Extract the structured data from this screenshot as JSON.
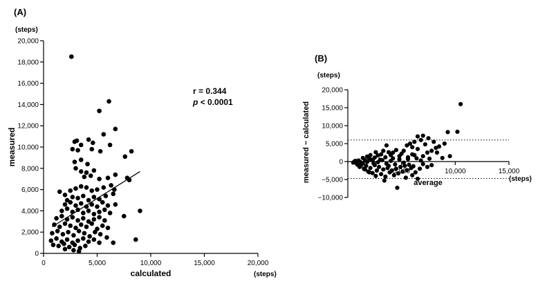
{
  "chart_data": [
    {
      "panel_label": "(A)",
      "type": "scatter",
      "x_unit": "(steps)",
      "y_unit": "(steps)",
      "xlabel": "calculated",
      "ylabel": "measured",
      "xlim": [
        0,
        20000
      ],
      "ylim": [
        0,
        20000
      ],
      "x_ticks": [
        0,
        5000,
        10000,
        15000,
        20000
      ],
      "x_tick_labels": [
        "0",
        "5,000",
        "10,000",
        "15,000",
        "20,000"
      ],
      "y_ticks": [
        0,
        2000,
        4000,
        6000,
        8000,
        10000,
        12000,
        14000,
        16000,
        18000,
        20000
      ],
      "y_tick_labels": [
        "0",
        "2,000",
        "4,000",
        "6,000",
        "8,000",
        "10,000",
        "12,000",
        "14,000",
        "16,000",
        "18,000",
        "20,000"
      ],
      "annotation_r": "r = 0.344",
      "annotation_p_symbol": "p",
      "annotation_p_value": "< 0.0001",
      "regression_line": [
        [
          800,
          2500
        ],
        [
          9000,
          7700
        ]
      ],
      "points": [
        [
          2600,
          18500
        ],
        [
          6100,
          14300
        ],
        [
          5200,
          13400
        ],
        [
          6700,
          11700
        ],
        [
          5600,
          11200
        ],
        [
          2900,
          10500
        ],
        [
          3100,
          10600
        ],
        [
          4200,
          10700
        ],
        [
          3500,
          10200
        ],
        [
          4600,
          10400
        ],
        [
          2700,
          9800
        ],
        [
          3200,
          9700
        ],
        [
          4500,
          9800
        ],
        [
          5300,
          9600
        ],
        [
          6200,
          10200
        ],
        [
          8200,
          9600
        ],
        [
          7600,
          9100
        ],
        [
          2900,
          8600
        ],
        [
          3500,
          8800
        ],
        [
          4100,
          8400
        ],
        [
          3000,
          8000
        ],
        [
          3500,
          7700
        ],
        [
          4000,
          7600
        ],
        [
          4700,
          7800
        ],
        [
          3800,
          7200
        ],
        [
          4400,
          7300
        ],
        [
          5200,
          7000
        ],
        [
          6000,
          7100
        ],
        [
          6700,
          7400
        ],
        [
          7800,
          7100
        ],
        [
          8000,
          6900
        ],
        [
          1500,
          5800
        ],
        [
          2000,
          5500
        ],
        [
          2500,
          5900
        ],
        [
          3000,
          6100
        ],
        [
          3500,
          6300
        ],
        [
          4000,
          6200
        ],
        [
          4500,
          5900
        ],
        [
          5000,
          6000
        ],
        [
          5600,
          6200
        ],
        [
          6300,
          6400
        ],
        [
          6600,
          6000
        ],
        [
          2200,
          5000
        ],
        [
          2700,
          5300
        ],
        [
          3200,
          5200
        ],
        [
          3700,
          5400
        ],
        [
          4200,
          5000
        ],
        [
          4700,
          5300
        ],
        [
          5200,
          5100
        ],
        [
          5800,
          5400
        ],
        [
          6500,
          5600
        ],
        [
          2000,
          4600
        ],
        [
          2500,
          4800
        ],
        [
          3000,
          4500
        ],
        [
          3500,
          4700
        ],
        [
          4000,
          4400
        ],
        [
          4500,
          4600
        ],
        [
          5000,
          4400
        ],
        [
          5500,
          4800
        ],
        [
          6000,
          4500
        ],
        [
          6700,
          4600
        ],
        [
          1700,
          4000
        ],
        [
          2200,
          4200
        ],
        [
          2700,
          3900
        ],
        [
          3200,
          4100
        ],
        [
          3700,
          3800
        ],
        [
          4200,
          4000
        ],
        [
          4700,
          3700
        ],
        [
          5200,
          3900
        ],
        [
          5700,
          4100
        ],
        [
          6200,
          3800
        ],
        [
          9000,
          4000
        ],
        [
          1200,
          3300
        ],
        [
          1700,
          3500
        ],
        [
          2200,
          3200
        ],
        [
          2700,
          3400
        ],
        [
          3200,
          3100
        ],
        [
          3700,
          3300
        ],
        [
          4200,
          3000
        ],
        [
          4700,
          3200
        ],
        [
          5200,
          3400
        ],
        [
          5700,
          3100
        ],
        [
          7500,
          3500
        ],
        [
          1000,
          2700
        ],
        [
          1500,
          2500
        ],
        [
          2000,
          2800
        ],
        [
          2500,
          2600
        ],
        [
          3000,
          2400
        ],
        [
          3500,
          2700
        ],
        [
          4000,
          2500
        ],
        [
          4500,
          2800
        ],
        [
          5000,
          2300
        ],
        [
          5500,
          2600
        ],
        [
          6000,
          2400
        ],
        [
          800,
          1900
        ],
        [
          1300,
          2100
        ],
        [
          1800,
          1800
        ],
        [
          2300,
          2000
        ],
        [
          2800,
          1700
        ],
        [
          3300,
          2100
        ],
        [
          3800,
          1900
        ],
        [
          4300,
          1600
        ],
        [
          4800,
          2000
        ],
        [
          5300,
          1800
        ],
        [
          5900,
          1500
        ],
        [
          700,
          1200
        ],
        [
          1200,
          1400
        ],
        [
          1700,
          1100
        ],
        [
          2200,
          1300
        ],
        [
          2700,
          1000
        ],
        [
          3200,
          1200
        ],
        [
          3700,
          1400
        ],
        [
          4200,
          1100
        ],
        [
          4700,
          1300
        ],
        [
          5200,
          1000
        ],
        [
          6500,
          1000
        ],
        [
          8600,
          1300
        ],
        [
          900,
          800
        ],
        [
          1400,
          700
        ],
        [
          1900,
          900
        ],
        [
          2400,
          600
        ],
        [
          2900,
          800
        ],
        [
          3400,
          500
        ],
        [
          3900,
          700
        ],
        [
          2800,
          300
        ],
        [
          3300,
          200
        ],
        [
          2000,
          400
        ]
      ]
    },
    {
      "panel_label": "(B)",
      "type": "scatter",
      "x_unit": "(steps)",
      "y_unit": "(steps)",
      "xlabel": "average",
      "ylabel": "measured − calculated",
      "xlim": [
        0,
        15000
      ],
      "ylim": [
        -10000,
        20000
      ],
      "x_ticks": [
        0,
        5000,
        10000,
        15000
      ],
      "x_tick_labels": [
        "0",
        "5,000",
        "10,000",
        "15,000"
      ],
      "y_ticks": [
        -10000,
        -5000,
        0,
        5000,
        10000,
        15000,
        20000
      ],
      "y_tick_labels": [
        "−10,000",
        "−5,000",
        "0",
        "5,000",
        "10,000",
        "15,000",
        "20,000"
      ],
      "reference_lines_y": [
        6000,
        -4700
      ],
      "points": [
        [
          10500,
          16000
        ],
        [
          10200,
          8300
        ],
        [
          9300,
          8200
        ],
        [
          9000,
          5000
        ],
        [
          8500,
          4200
        ],
        [
          8000,
          5500
        ],
        [
          7500,
          6500
        ],
        [
          7000,
          7200
        ],
        [
          6500,
          7000
        ],
        [
          6800,
          6000
        ],
        [
          6200,
          5500
        ],
        [
          5800,
          5000
        ],
        [
          5500,
          4500
        ],
        [
          6000,
          4000
        ],
        [
          6500,
          3500
        ],
        [
          7200,
          4800
        ],
        [
          7800,
          3000
        ],
        [
          8300,
          2500
        ],
        [
          7000,
          1500
        ],
        [
          7600,
          800
        ],
        [
          8800,
          1000
        ],
        [
          6000,
          2000
        ],
        [
          5600,
          1200
        ],
        [
          5200,
          3000
        ],
        [
          5000,
          2200
        ],
        [
          4800,
          1500
        ],
        [
          4500,
          3200
        ],
        [
          4200,
          2500
        ],
        [
          4000,
          1800
        ],
        [
          3800,
          2600
        ],
        [
          3600,
          4500
        ],
        [
          3500,
          1200
        ],
        [
          3300,
          3000
        ],
        [
          3100,
          2000
        ],
        [
          3000,
          500
        ],
        [
          2800,
          1700
        ],
        [
          2600,
          2600
        ],
        [
          2500,
          1100
        ],
        [
          2300,
          300
        ],
        [
          2100,
          1800
        ],
        [
          2000,
          800
        ],
        [
          1800,
          1400
        ],
        [
          1600,
          400
        ],
        [
          1400,
          1000
        ],
        [
          1200,
          -200
        ],
        [
          1000,
          300
        ],
        [
          800,
          -500
        ],
        [
          600,
          0
        ],
        [
          500,
          -300
        ],
        [
          700,
          200
        ],
        [
          900,
          -900
        ],
        [
          1100,
          -1500
        ],
        [
          1300,
          -700
        ],
        [
          1500,
          -2000
        ],
        [
          1700,
          -1200
        ],
        [
          1900,
          -2800
        ],
        [
          2100,
          -1800
        ],
        [
          2300,
          -3200
        ],
        [
          2500,
          -1000
        ],
        [
          2700,
          -2500
        ],
        [
          2900,
          -1500
        ],
        [
          3100,
          -3500
        ],
        [
          3300,
          -2200
        ],
        [
          3500,
          -4200
        ],
        [
          3700,
          -1800
        ],
        [
          3900,
          -3000
        ],
        [
          4100,
          -2500
        ],
        [
          4300,
          -3800
        ],
        [
          4500,
          -2000
        ],
        [
          4700,
          -3300
        ],
        [
          4900,
          -1500
        ],
        [
          5100,
          -2800
        ],
        [
          5300,
          -1200
        ],
        [
          5500,
          -2400
        ],
        [
          5700,
          -900
        ],
        [
          5900,
          -1800
        ],
        [
          6100,
          -1300
        ],
        [
          6300,
          -3000
        ],
        [
          6500,
          -4800
        ],
        [
          6700,
          -2000
        ],
        [
          7000,
          -700
        ],
        [
          7400,
          -1500
        ],
        [
          7800,
          -1000
        ],
        [
          4600,
          -7300
        ],
        [
          3400,
          -5300
        ],
        [
          2600,
          -4000
        ],
        [
          2000,
          -3000
        ],
        [
          1600,
          -2200
        ],
        [
          1200,
          -1200
        ],
        [
          5400,
          -4500
        ],
        [
          6000,
          -3800
        ],
        [
          2400,
          -500
        ],
        [
          2800,
          -200
        ],
        [
          3200,
          400
        ],
        [
          3600,
          -600
        ],
        [
          4000,
          200
        ],
        [
          4400,
          -800
        ],
        [
          4800,
          600
        ],
        [
          5200,
          -300
        ],
        [
          5600,
          700
        ],
        [
          6400,
          900
        ],
        [
          6800,
          300
        ],
        [
          4200,
          900
        ],
        [
          3800,
          -1200
        ],
        [
          1400,
          -500
        ],
        [
          1800,
          -100
        ],
        [
          2200,
          500
        ],
        [
          6200,
          1800
        ],
        [
          7400,
          2500
        ],
        [
          8200,
          3800
        ],
        [
          9500,
          1500
        ]
      ]
    }
  ]
}
